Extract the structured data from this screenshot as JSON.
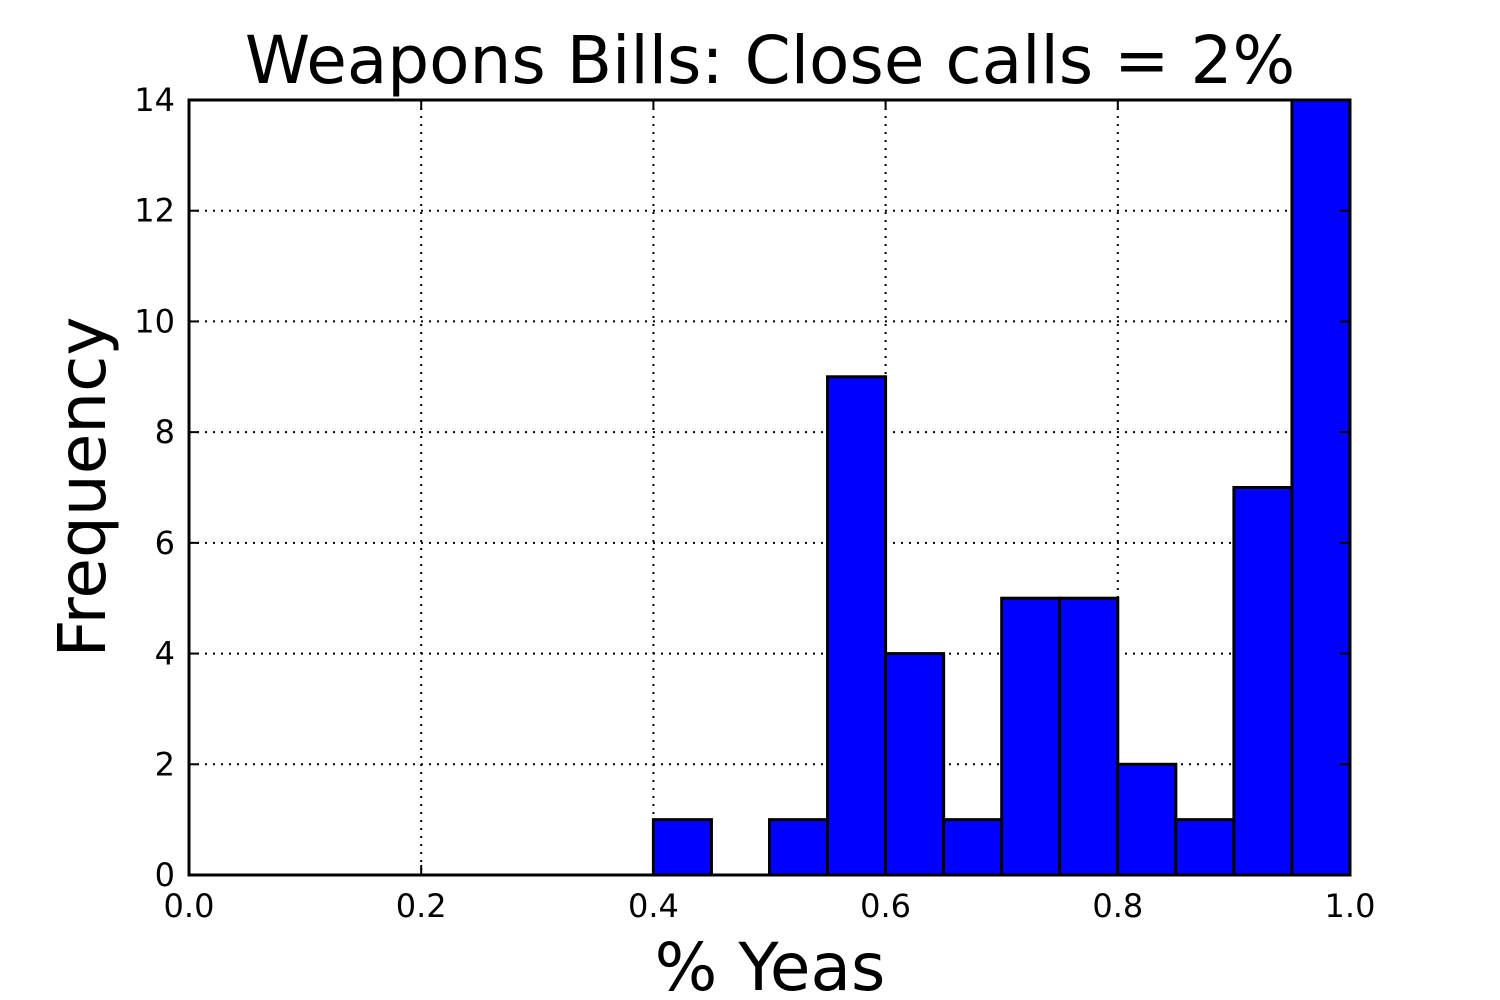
{
  "chart_data": {
    "type": "bar",
    "title": "Weapons Bills: Close calls = 2%",
    "xlabel": "% Yeas",
    "ylabel": "Frequency",
    "xlim": [
      0.0,
      1.0
    ],
    "ylim": [
      0,
      14
    ],
    "xticks": [
      "0.0",
      "0.2",
      "0.4",
      "0.6",
      "0.8",
      "1.0"
    ],
    "yticks": [
      "0",
      "2",
      "4",
      "6",
      "8",
      "10",
      "12",
      "14"
    ],
    "grid": true,
    "bar_color": "#0000ff",
    "bin_edges": [
      0.0,
      0.05,
      0.1,
      0.15,
      0.2,
      0.25,
      0.3,
      0.35,
      0.4,
      0.45,
      0.5,
      0.55,
      0.6,
      0.65,
      0.7,
      0.75,
      0.8,
      0.85,
      0.9,
      0.95,
      1.0
    ],
    "values": [
      0,
      0,
      0,
      0,
      0,
      0,
      0,
      0,
      1,
      0,
      1,
      9,
      4,
      1,
      5,
      5,
      2,
      1,
      7,
      14
    ]
  }
}
